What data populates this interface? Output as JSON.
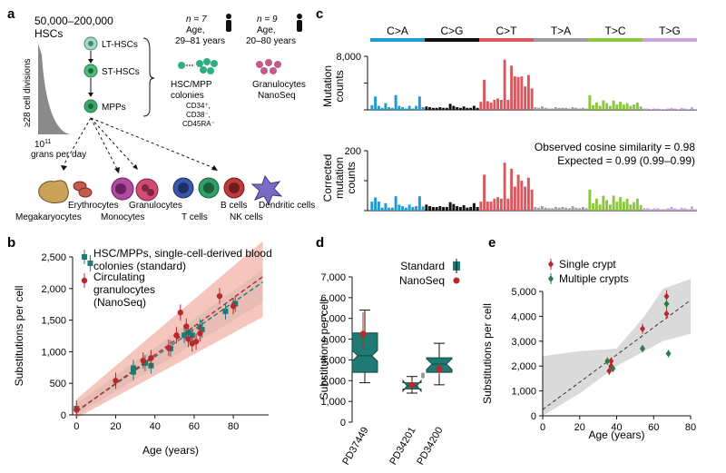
{
  "panels": {
    "a": {
      "letter": "a",
      "hsc_count": "50,000–200,000",
      "hsc_word": "HSCs",
      "divisions_label": "≥28 cell divisions",
      "grans_base": "10",
      "grans_exp": "11",
      "grans_rest": "grans per day",
      "stages": [
        "LT-HSCs",
        "ST-HSCs",
        "MPPs"
      ],
      "cohort1": {
        "n": "n = 7",
        "age": "Age,",
        "range": "29–81 years"
      },
      "cohort2": {
        "n": "n = 9",
        "age": "Age,",
        "range": "20–80 years"
      },
      "colonies_label_1": "HSC/MPP",
      "colonies_label_2": "colonies",
      "markers": [
        "CD34⁺,",
        "CD38⁻,",
        "CD45RA⁻"
      ],
      "granulocytes_label_1": "Granulocytes",
      "granulocytes_label_2": "NanoSeq",
      "cell_types": [
        "Megakaryocytes",
        "Erythrocytes",
        "Granulocytes",
        "Monocytes",
        "B cells",
        "T cells",
        "Dendritic cells",
        "NK cells"
      ]
    },
    "b": {
      "letter": "b"
    },
    "c": {
      "letter": "c",
      "observed": "Observed cosine similarity = 0.98",
      "expected": "Expected = 0.99 (0.99–0.99)"
    },
    "d": {
      "letter": "d"
    },
    "e": {
      "letter": "e"
    }
  },
  "colors": {
    "teal": "#1f7a73",
    "red": "#b8282c",
    "band_red": "#f0b3a8",
    "band_teal": "#b9ccca",
    "grey_band": "#d6d6d6"
  },
  "chart_data": [
    {
      "id": "b",
      "type": "scatter",
      "title": "",
      "xlabel": "Age (years)",
      "ylabel": "Substitutions per cell",
      "xlim": [
        -2,
        98
      ],
      "ylim": [
        0,
        2500
      ],
      "xticks": [
        0,
        20,
        40,
        60,
        80
      ],
      "yticks": [
        0,
        500,
        1000,
        1500,
        2000,
        2500
      ],
      "ytick_labels": [
        "0",
        "500",
        "1,000",
        "1,500",
        "2,000",
        "2,500"
      ],
      "legend": [
        {
          "label": "HSC/MPPs, single-cell-derived blood colonies (standard)",
          "lines": [
            "HSC/MPPs, single-cell-derived blood",
            "colonies (standard)"
          ],
          "color": "#1f7a73",
          "marker": "square"
        },
        {
          "label": "Circulating granulocytes (NanoSeq)",
          "lines": [
            "Circulating",
            "granulocytes",
            "(NanoSeq)"
          ],
          "color": "#b8282c",
          "marker": "circle"
        }
      ],
      "series": [
        {
          "name": "HSC/MPPs (standard)",
          "color": "#1f7a73",
          "marker": "square",
          "points": [
            [
              0,
              100
            ],
            [
              7,
              2400
            ],
            [
              29,
              740
            ],
            [
              29,
              680
            ],
            [
              35,
              820
            ],
            [
              38,
              780
            ],
            [
              48,
              1050
            ],
            [
              55,
              1260
            ],
            [
              57,
              1300
            ],
            [
              59,
              1260
            ],
            [
              63,
              1390
            ],
            [
              64,
              1350
            ],
            [
              76,
              1640
            ],
            [
              81,
              1760
            ]
          ]
        },
        {
          "name": "Granulocytes (NanoSeq)",
          "color": "#b8282c",
          "marker": "circle",
          "points": [
            [
              0,
              80
            ],
            [
              20,
              540
            ],
            [
              34,
              860
            ],
            [
              38,
              900
            ],
            [
              47,
              1060
            ],
            [
              51,
              1260
            ],
            [
              53,
              1620
            ],
            [
              56,
              1400
            ],
            [
              57,
              1200
            ],
            [
              59,
              1130
            ],
            [
              61,
              1160
            ],
            [
              63,
              1290
            ],
            [
              73,
              1880
            ],
            [
              80,
              1720
            ]
          ]
        }
      ],
      "fits": [
        {
          "name": "standard",
          "intercept": 60,
          "slope": 21.5,
          "band": [
            [
              0,
              0,
              170
            ],
            [
              95,
              1780,
              2300
            ]
          ],
          "color": "#1f7a73"
        },
        {
          "name": "nanoseq",
          "intercept": 50,
          "slope": 22.5,
          "band": [
            [
              0,
              -50,
              250
            ],
            [
              95,
              1550,
              2750
            ]
          ],
          "color": "#b8282c"
        }
      ]
    },
    {
      "id": "c",
      "type": "bar",
      "categories": [
        "C>A",
        "C>G",
        "C>T",
        "T>A",
        "T>C",
        "T>G"
      ],
      "category_colors": [
        "#1f9bd2",
        "#111111",
        "#d9585f",
        "#9e9e9e",
        "#8cc63f",
        "#c9a4d8"
      ],
      "top": {
        "ylabel": "Mutation counts",
        "ylim": [
          0,
          8000
        ],
        "yticks": [
          0,
          4000,
          8000
        ],
        "ytick_labels": [
          "",
          "",
          "8,000"
        ],
        "values": [
          [
            700,
            2000,
            600,
            300,
            1000,
            400,
            300,
            2200,
            600,
            400,
            200,
            600,
            200,
            600,
            2000,
            400
          ],
          [
            500,
            400,
            300,
            300,
            400,
            300,
            300,
            900,
            600,
            400,
            300,
            500,
            300,
            300,
            600,
            300
          ],
          [
            1200,
            4500,
            1300,
            1100,
            1500,
            1700,
            1500,
            7500,
            1500,
            6600,
            5000,
            4900,
            5000,
            3500,
            5200,
            3200
          ],
          [
            400,
            300,
            500,
            300,
            200,
            200,
            400,
            300,
            300,
            300,
            200,
            400,
            300,
            200,
            300,
            200
          ],
          [
            2200,
            700,
            1100,
            600,
            1400,
            1000,
            600,
            1400,
            800,
            1200,
            800,
            1000,
            600,
            800,
            1100,
            500
          ],
          [
            200,
            200,
            100,
            200,
            200,
            100,
            100,
            200,
            300,
            200,
            100,
            300,
            200,
            100,
            400,
            100
          ]
        ]
      },
      "bottom": {
        "ylabel": "Corrected mutation counts",
        "ylim": [
          0,
          200
        ],
        "yticks": [
          0,
          100,
          200
        ],
        "ytick_labels": [
          "",
          "",
          "200"
        ],
        "values": [
          [
            30,
            44,
            30,
            10,
            25,
            10,
            10,
            48,
            20,
            15,
            10,
            20,
            12,
            15,
            48,
            14
          ],
          [
            20,
            15,
            12,
            12,
            15,
            12,
            12,
            28,
            22,
            15,
            12,
            18,
            10,
            12,
            25,
            12
          ],
          [
            30,
            120,
            30,
            30,
            40,
            45,
            40,
            160,
            40,
            140,
            80,
            120,
            100,
            80,
            110,
            70
          ],
          [
            12,
            10,
            15,
            10,
            8,
            8,
            12,
            10,
            12,
            10,
            8,
            15,
            10,
            8,
            12,
            8
          ],
          [
            70,
            25,
            40,
            20,
            50,
            35,
            20,
            50,
            30,
            45,
            30,
            40,
            20,
            28,
            40,
            18
          ],
          [
            8,
            8,
            5,
            8,
            8,
            5,
            5,
            8,
            12,
            8,
            5,
            10,
            8,
            5,
            14,
            5
          ]
        ]
      }
    },
    {
      "id": "d",
      "type": "box",
      "ylabel": "Substitutions per cell",
      "ylim": [
        0,
        7000
      ],
      "yticks": [
        0,
        1000,
        2000,
        3000,
        4000,
        5000,
        6000,
        7000
      ],
      "ytick_labels": [
        "0",
        "1,000",
        "2,000",
        "3,000",
        "4,000",
        "5,000",
        "6,000",
        "7,000"
      ],
      "categories": [
        "PD37449",
        "PD34201",
        "PD34200"
      ],
      "legend": [
        {
          "label": "Standard",
          "color": "#1f7a73"
        },
        {
          "label": "NanoSeq",
          "color": "#b8282c"
        }
      ],
      "boxes": [
        {
          "min": 1900,
          "q1": 2400,
          "median": 3200,
          "q3": 4300,
          "max": 5400
        },
        {
          "min": 1400,
          "q1": 1600,
          "median": 1750,
          "q3": 1900,
          "max": 2200
        },
        {
          "min": 1800,
          "q1": 2400,
          "median": 2800,
          "q3": 3100,
          "max": 3800
        }
      ],
      "nanoseq": [
        {
          "value": 4250,
          "lo": 3500,
          "hi": 5300
        },
        {
          "value": 1790,
          "lo": 1600,
          "hi": 2000
        },
        {
          "value": 2550,
          "lo": 2300,
          "hi": 2800
        }
      ],
      "outliers": [
        [
          1,
          2300
        ],
        [
          1,
          2200
        ]
      ]
    },
    {
      "id": "e",
      "type": "scatter",
      "xlabel": "Age (years)",
      "ylabel": "Substitutions per cell",
      "xlim": [
        0,
        80
      ],
      "ylim": [
        0,
        5000
      ],
      "xticks": [
        0,
        20,
        40,
        60,
        80
      ],
      "yticks": [
        0,
        1000,
        2000,
        3000,
        4000,
        5000
      ],
      "ytick_labels": [
        "0",
        "1,000",
        "2,000",
        "3,000",
        "4,000",
        "5,000"
      ],
      "legend": [
        {
          "label": "Single crypt",
          "color": "#b8282c"
        },
        {
          "label": "Multiple crypts",
          "color": "#2a7a4b"
        }
      ],
      "series": [
        {
          "name": "Single crypt",
          "color": "#b8282c",
          "marker": "diamond",
          "points": [
            [
              36,
              1800,
              1650,
              1950
            ],
            [
              37,
              2200,
              2050,
              2350
            ],
            [
              37,
              2000,
              1850,
              2150
            ],
            [
              54,
              3500,
              3300,
              3700
            ],
            [
              67,
              4800,
              4550,
              5050
            ],
            [
              67,
              4100,
              3900,
              4300
            ]
          ]
        },
        {
          "name": "Multiple crypts",
          "color": "#2a7a4b",
          "marker": "diamond",
          "points": [
            [
              35,
              2200,
              2050,
              2350
            ],
            [
              38,
              1900,
              1750,
              2050
            ],
            [
              54,
              2700,
              2550,
              2850
            ],
            [
              67,
              4500,
              4300,
              4700
            ],
            [
              68,
              2500,
              2350,
              2650
            ]
          ]
        }
      ],
      "fit": {
        "intercept": 250,
        "slope": 55
      },
      "band": [
        [
          0,
          -300,
          2400
        ],
        [
          20,
          900,
          2600
        ],
        [
          40,
          2000,
          2700
        ],
        [
          55,
          2600,
          4000
        ],
        [
          65,
          3000,
          5100
        ],
        [
          80,
          3300,
          5500
        ]
      ]
    }
  ]
}
